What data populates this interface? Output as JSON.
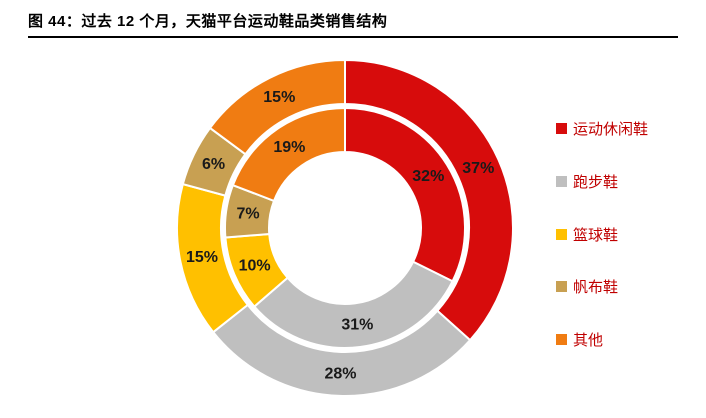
{
  "title": "图 44：过去 12 个月，天猫平台运动鞋品类销售结构",
  "legend": {
    "items": [
      {
        "label": "运动休闲鞋",
        "color": "#d70c0c"
      },
      {
        "label": "跑步鞋",
        "color": "#bfbfbf"
      },
      {
        "label": "篮球鞋",
        "color": "#ffc000"
      },
      {
        "label": "帆布鞋",
        "color": "#c8a052"
      },
      {
        "label": "其他",
        "color": "#f07c12"
      }
    ]
  },
  "chart_data": {
    "type": "pie",
    "subtype": "double-ring-donut",
    "title": "过去 12 个月，天猫平台运动鞋品类销售结构",
    "categories": [
      "运动休闲鞋",
      "跑步鞋",
      "篮球鞋",
      "帆布鞋",
      "其他"
    ],
    "series": [
      {
        "name": "outer-ring",
        "values": [
          37,
          28,
          15,
          6,
          15
        ]
      },
      {
        "name": "inner-ring",
        "values": [
          32,
          31,
          10,
          7,
          19
        ]
      }
    ],
    "labels_outer": [
      "37%",
      "28%",
      "15%",
      "6%",
      "15%"
    ],
    "labels_inner": [
      "32%",
      "31%",
      "10%",
      "7%",
      "19%"
    ],
    "colors": [
      "#d70c0c",
      "#bfbfbf",
      "#ffc000",
      "#c8a052",
      "#f07c12"
    ],
    "start_angle_deg": 0,
    "direction": "clockwise",
    "legend_position": "right"
  }
}
